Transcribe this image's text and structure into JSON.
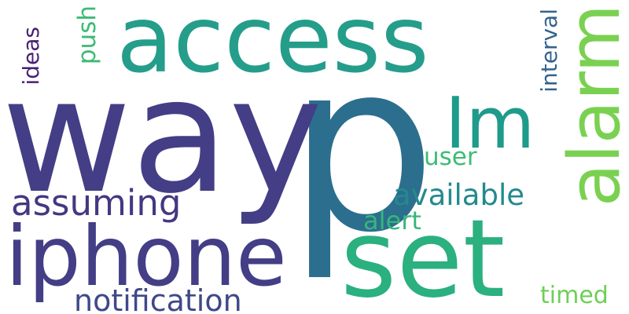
{
  "words": {
    "p": {
      "text": "p",
      "color": "#2c6e8e"
    },
    "way": {
      "text": "way",
      "color": "#433e85"
    },
    "access": {
      "text": "access",
      "color": "#259d8b"
    },
    "set": {
      "text": "set",
      "color": "#2bb07f"
    },
    "iphone": {
      "text": "iphone",
      "color": "#433e85"
    },
    "im": {
      "text": "Im",
      "color": "#1e9b8a"
    },
    "alarm": {
      "text": "alarm",
      "color": "#7ad151"
    },
    "assuming": {
      "text": "assuming",
      "color": "#453781"
    },
    "notification": {
      "text": "notification",
      "color": "#3f4889"
    },
    "available": {
      "text": "available",
      "color": "#238a8d"
    },
    "alert": {
      "text": "alert",
      "color": "#35b779"
    },
    "user": {
      "text": "user",
      "color": "#3dbc74"
    },
    "timed": {
      "text": "timed",
      "color": "#6ece58"
    },
    "push": {
      "text": "push",
      "color": "#3bbb75"
    },
    "ideas": {
      "text": "ideas",
      "color": "#482173"
    },
    "interval": {
      "text": "interval",
      "color": "#33638d"
    }
  },
  "background_color": "#ffffff"
}
